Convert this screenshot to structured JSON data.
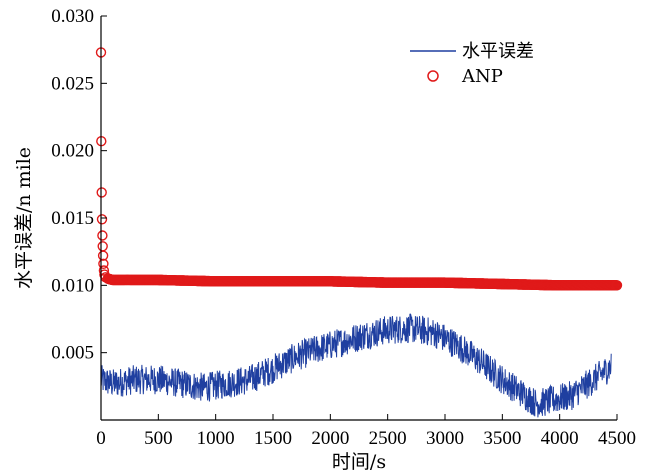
{
  "chart_data": {
    "type": "line",
    "xlabel": "时间/s",
    "ylabel": "水平误差/n mile",
    "xlim": [
      0,
      4500
    ],
    "ylim": [
      0,
      0.03
    ],
    "x_ticks": [
      0,
      500,
      1000,
      1500,
      2000,
      2500,
      3000,
      3500,
      4000,
      4500
    ],
    "y_ticks": [
      0.005,
      0.01,
      0.015,
      0.02,
      0.025,
      0.03
    ],
    "x_tick_labels": [
      "0",
      "500",
      "1000",
      "1500",
      "2000",
      "2500",
      "3000",
      "3500",
      "4000",
      "4500"
    ],
    "y_tick_labels": [
      "0.005",
      "0.010",
      "0.015",
      "0.020",
      "0.025",
      "0.030"
    ],
    "grid": false,
    "legend_position": "top-right",
    "series": [
      {
        "name": "水平误差",
        "style": "line",
        "color": "#1f3fa0",
        "x": [
          0,
          100,
          300,
          500,
          700,
          900,
          1100,
          1300,
          1500,
          1700,
          1900,
          2100,
          2300,
          2500,
          2700,
          2900,
          3100,
          3300,
          3500,
          3700,
          3800,
          3900,
          4100,
          4300,
          4450
        ],
        "y": [
          0.003,
          0.0027,
          0.003,
          0.003,
          0.0027,
          0.0024,
          0.0027,
          0.003,
          0.0038,
          0.0047,
          0.0053,
          0.0058,
          0.0063,
          0.0067,
          0.0068,
          0.0065,
          0.0056,
          0.0044,
          0.003,
          0.0018,
          0.0012,
          0.0014,
          0.0018,
          0.003,
          0.004
        ],
        "noise_amplitude": 0.0011
      },
      {
        "name": "ANP",
        "style": "scatter",
        "marker": "circle-open",
        "color": "#e01a1a",
        "x": [
          0,
          3,
          6,
          9,
          12,
          15,
          18,
          21,
          25,
          30,
          40,
          60,
          100,
          200,
          500,
          1000,
          1500,
          2000,
          2500,
          3000,
          3500,
          4000,
          4500
        ],
        "y": [
          0.0273,
          0.0207,
          0.0169,
          0.0149,
          0.0137,
          0.0129,
          0.0122,
          0.0116,
          0.0111,
          0.0108,
          0.0106,
          0.0105,
          0.0104,
          0.0104,
          0.0104,
          0.0103,
          0.0103,
          0.0103,
          0.0102,
          0.0102,
          0.0101,
          0.01,
          0.01
        ]
      }
    ]
  }
}
